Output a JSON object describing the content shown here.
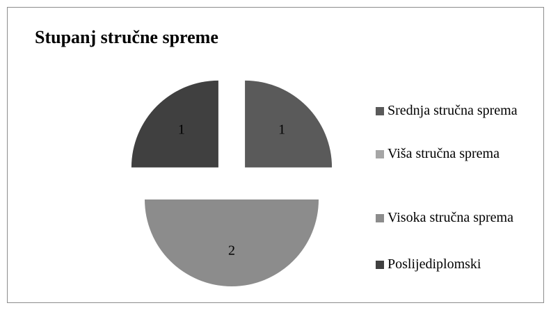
{
  "chart_data": {
    "type": "pie",
    "title": "Stupanj stručne spreme",
    "categories": [
      "Srednja stručna sprema",
      "Viša stručna sprema",
      "Visoka stručna sprema",
      "Poslijediplomski"
    ],
    "values": [
      1,
      0,
      2,
      1
    ],
    "colors": [
      "#5a5a5a",
      "#a6a6a6",
      "#8c8c8c",
      "#404040"
    ],
    "exploded": true,
    "legend": "right"
  }
}
